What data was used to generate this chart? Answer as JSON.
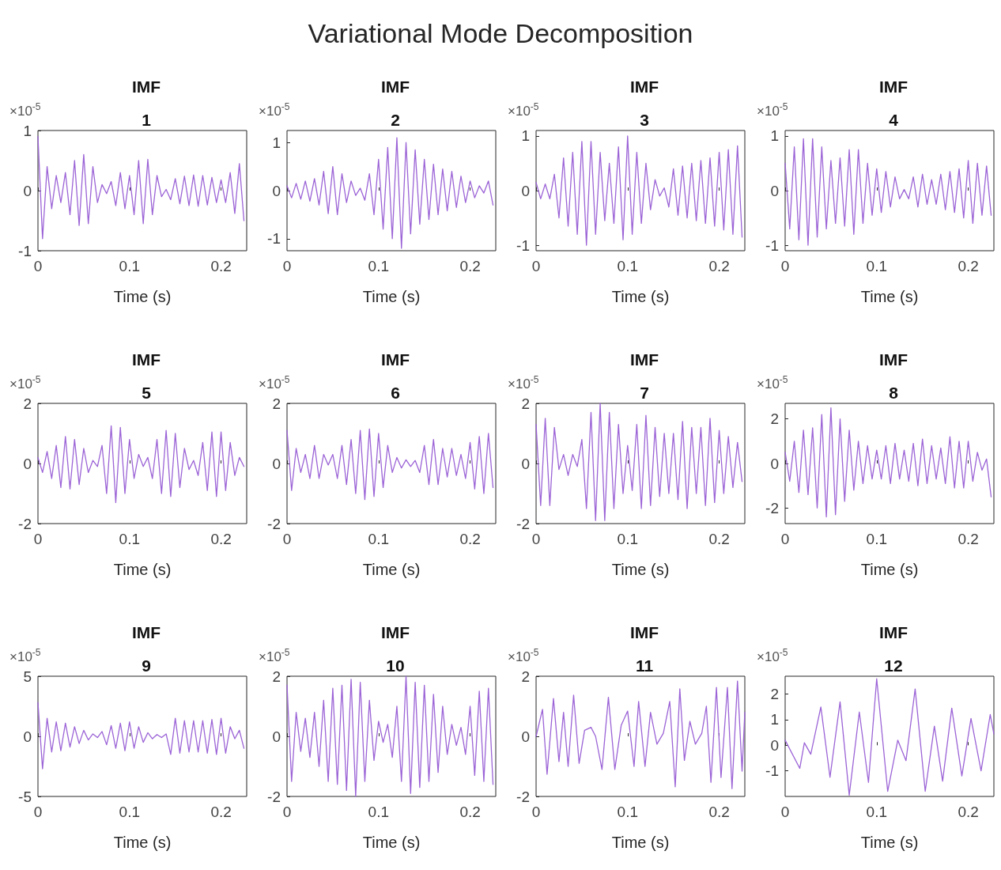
{
  "chart_data": [
    {
      "type": "other",
      "title": "Variational Mode Decomposition"
    },
    {
      "type": "line",
      "title": "IMF 1",
      "xlabel": "Time (s)",
      "annotations": [
        "×10$^{-5}$"
      ],
      "color": "#9b63d6",
      "xlim": [
        0,
        0.228
      ],
      "xticks": [
        0,
        0.1,
        0.2
      ],
      "ylim": [
        -1,
        1
      ],
      "yticks": [
        -1,
        0,
        1
      ],
      "x": [
        0,
        0.005,
        0.01,
        0.015,
        0.02,
        0.025,
        0.03,
        0.035,
        0.04,
        0.045,
        0.05,
        0.055,
        0.06,
        0.065,
        0.07,
        0.075,
        0.08,
        0.085,
        0.09,
        0.095,
        0.1,
        0.105,
        0.11,
        0.115,
        0.12,
        0.125,
        0.13,
        0.135,
        0.14,
        0.145,
        0.15,
        0.155,
        0.16,
        0.165,
        0.17,
        0.175,
        0.18,
        0.185,
        0.19,
        0.195,
        0.2,
        0.205,
        0.21,
        0.215,
        0.22,
        0.225
      ],
      "values": [
        0.9,
        -0.8,
        0.4,
        -0.3,
        0.25,
        -0.2,
        0.3,
        -0.4,
        0.5,
        -0.58,
        0.6,
        -0.55,
        0.4,
        -0.2,
        0.1,
        -0.05,
        0.15,
        -0.25,
        0.3,
        -0.3,
        0.25,
        -0.4,
        0.5,
        -0.55,
        0.52,
        -0.4,
        0.25,
        -0.1,
        0.02,
        -0.15,
        0.2,
        -0.22,
        0.24,
        -0.25,
        0.26,
        -0.26,
        0.25,
        -0.24,
        0.22,
        -0.2,
        0.18,
        -0.2,
        0.3,
        -0.38,
        0.45,
        -0.5
      ]
    },
    {
      "type": "line",
      "title": "IMF 2",
      "xlabel": "Time (s)",
      "annotations": [
        "×10$^{-5}$"
      ],
      "color": "#9b63d6",
      "xlim": [
        0,
        0.228
      ],
      "xticks": [
        0,
        0.1,
        0.2
      ],
      "ylim": [
        -1.25,
        1.25
      ],
      "yticks": [
        -1,
        0,
        1
      ],
      "x": [
        0,
        0.005,
        0.01,
        0.015,
        0.02,
        0.025,
        0.03,
        0.035,
        0.04,
        0.045,
        0.05,
        0.055,
        0.06,
        0.065,
        0.07,
        0.075,
        0.08,
        0.085,
        0.09,
        0.095,
        0.1,
        0.105,
        0.11,
        0.115,
        0.12,
        0.125,
        0.13,
        0.135,
        0.14,
        0.145,
        0.15,
        0.155,
        0.16,
        0.165,
        0.17,
        0.175,
        0.18,
        0.185,
        0.19,
        0.195,
        0.2,
        0.205,
        0.21,
        0.215,
        0.22,
        0.225
      ],
      "values": [
        0.1,
        -0.15,
        0.15,
        -0.18,
        0.2,
        -0.22,
        0.25,
        -0.3,
        0.4,
        -0.48,
        0.5,
        -0.5,
        0.35,
        -0.25,
        0.2,
        -0.1,
        0.05,
        -0.2,
        0.35,
        -0.5,
        0.65,
        -0.8,
        0.9,
        -1.0,
        1.1,
        -1.2,
        1.0,
        -0.9,
        0.85,
        -0.7,
        0.65,
        -0.6,
        0.55,
        -0.5,
        0.45,
        -0.42,
        0.4,
        -0.35,
        0.3,
        -0.25,
        0.2,
        -0.15,
        0.1,
        -0.05,
        0.2,
        -0.3
      ]
    },
    {
      "type": "line",
      "title": "IMF 3",
      "xlabel": "Time (s)",
      "annotations": [
        "×10$^{-5}$"
      ],
      "color": "#9b63d6",
      "xlim": [
        0,
        0.228
      ],
      "xticks": [
        0,
        0.1,
        0.2
      ],
      "ylim": [
        -1.1,
        1.1
      ],
      "yticks": [
        -1,
        0,
        1
      ],
      "x": [
        0,
        0.005,
        0.01,
        0.015,
        0.02,
        0.025,
        0.03,
        0.035,
        0.04,
        0.045,
        0.05,
        0.055,
        0.06,
        0.065,
        0.07,
        0.075,
        0.08,
        0.085,
        0.09,
        0.095,
        0.1,
        0.105,
        0.11,
        0.115,
        0.12,
        0.125,
        0.13,
        0.135,
        0.14,
        0.145,
        0.15,
        0.155,
        0.16,
        0.165,
        0.17,
        0.175,
        0.18,
        0.185,
        0.19,
        0.195,
        0.2,
        0.205,
        0.21,
        0.215,
        0.22,
        0.225
      ],
      "values": [
        0.15,
        -0.15,
        0.12,
        -0.15,
        0.3,
        -0.5,
        0.6,
        -0.65,
        0.7,
        -0.8,
        0.9,
        -1.0,
        0.9,
        -0.8,
        0.7,
        -0.55,
        0.5,
        -0.6,
        0.8,
        -0.9,
        1.0,
        -0.8,
        0.7,
        -0.6,
        0.5,
        -0.35,
        0.2,
        -0.1,
        0.05,
        -0.3,
        0.4,
        -0.45,
        0.45,
        -0.5,
        0.5,
        -0.55,
        0.55,
        -0.6,
        0.6,
        -0.65,
        0.7,
        -0.72,
        0.75,
        -0.8,
        0.82,
        -0.85
      ]
    },
    {
      "type": "line",
      "title": "IMF 4",
      "xlabel": "Time (s)",
      "annotations": [
        "×10$^{-5}$"
      ],
      "color": "#9b63d6",
      "xlim": [
        0,
        0.228
      ],
      "xticks": [
        0,
        0.1,
        0.2
      ],
      "ylim": [
        -1.1,
        1.1
      ],
      "yticks": [
        -1,
        0,
        1
      ],
      "x": [
        0,
        0.005,
        0.01,
        0.015,
        0.02,
        0.025,
        0.03,
        0.035,
        0.04,
        0.045,
        0.05,
        0.055,
        0.06,
        0.065,
        0.07,
        0.075,
        0.08,
        0.085,
        0.09,
        0.095,
        0.1,
        0.105,
        0.11,
        0.115,
        0.12,
        0.125,
        0.13,
        0.135,
        0.14,
        0.145,
        0.15,
        0.155,
        0.16,
        0.165,
        0.17,
        0.175,
        0.18,
        0.185,
        0.19,
        0.195,
        0.2,
        0.205,
        0.21,
        0.215,
        0.22,
        0.225
      ],
      "values": [
        0.5,
        -0.7,
        0.8,
        -0.9,
        0.95,
        -1.0,
        0.95,
        -0.85,
        0.8,
        -0.7,
        0.55,
        -0.6,
        0.6,
        -0.65,
        0.75,
        -0.8,
        0.75,
        -0.6,
        0.5,
        -0.45,
        0.4,
        -0.4,
        0.35,
        -0.3,
        0.25,
        -0.15,
        0.02,
        -0.15,
        0.25,
        -0.3,
        0.3,
        -0.25,
        0.2,
        -0.25,
        0.3,
        -0.35,
        0.35,
        -0.4,
        0.4,
        -0.5,
        0.55,
        -0.6,
        0.5,
        -0.45,
        0.45,
        -0.45
      ]
    },
    {
      "type": "line",
      "title": "IMF 5",
      "xlabel": "Time (s)",
      "annotations": [
        "×10$^{-5}$"
      ],
      "color": "#9b63d6",
      "xlim": [
        0,
        0.228
      ],
      "xticks": [
        0,
        0.1,
        0.2
      ],
      "ylim": [
        -2,
        2
      ],
      "yticks": [
        -2,
        0,
        2
      ],
      "x": [
        0,
        0.005,
        0.01,
        0.015,
        0.02,
        0.025,
        0.03,
        0.035,
        0.04,
        0.045,
        0.05,
        0.055,
        0.06,
        0.065,
        0.07,
        0.075,
        0.08,
        0.085,
        0.09,
        0.095,
        0.1,
        0.105,
        0.11,
        0.115,
        0.12,
        0.125,
        0.13,
        0.135,
        0.14,
        0.145,
        0.15,
        0.155,
        0.16,
        0.165,
        0.17,
        0.175,
        0.18,
        0.185,
        0.19,
        0.195,
        0.2,
        0.205,
        0.21,
        0.215,
        0.22,
        0.225
      ],
      "values": [
        0.2,
        -0.3,
        0.4,
        -0.5,
        0.6,
        -0.8,
        0.9,
        -0.85,
        0.8,
        -0.7,
        0.5,
        -0.3,
        0.1,
        -0.1,
        0.6,
        -1.0,
        1.25,
        -1.3,
        1.2,
        -1.0,
        0.8,
        -0.5,
        0.3,
        -0.1,
        0.2,
        -0.5,
        0.8,
        -1.0,
        1.1,
        -1.1,
        1.0,
        -0.8,
        0.5,
        -0.2,
        0.1,
        -0.4,
        0.7,
        -0.9,
        1.05,
        -1.1,
        1.05,
        -0.9,
        0.7,
        -0.4,
        0.2,
        -0.1
      ]
    },
    {
      "type": "line",
      "title": "IMF 6",
      "xlabel": "Time (s)",
      "annotations": [
        "×10$^{-5}$"
      ],
      "color": "#9b63d6",
      "xlim": [
        0,
        0.228
      ],
      "xticks": [
        0,
        0.1,
        0.2
      ],
      "ylim": [
        -2,
        2
      ],
      "yticks": [
        -2,
        0,
        2
      ],
      "x": [
        0,
        0.005,
        0.01,
        0.015,
        0.02,
        0.025,
        0.03,
        0.035,
        0.04,
        0.045,
        0.05,
        0.055,
        0.06,
        0.065,
        0.07,
        0.075,
        0.08,
        0.085,
        0.09,
        0.095,
        0.1,
        0.105,
        0.11,
        0.115,
        0.12,
        0.125,
        0.13,
        0.135,
        0.14,
        0.145,
        0.15,
        0.155,
        0.16,
        0.165,
        0.17,
        0.175,
        0.18,
        0.185,
        0.19,
        0.195,
        0.2,
        0.205,
        0.21,
        0.215,
        0.22,
        0.225
      ],
      "values": [
        1.1,
        -0.9,
        0.5,
        -0.3,
        0.3,
        -0.5,
        0.6,
        -0.5,
        0.3,
        -0.05,
        0.3,
        -0.5,
        0.6,
        -0.7,
        0.8,
        -1.0,
        1.1,
        -1.2,
        1.15,
        -1.1,
        1.0,
        -0.8,
        0.6,
        -0.3,
        0.2,
        -0.15,
        0.12,
        -0.1,
        0.1,
        -0.3,
        0.6,
        -0.7,
        0.8,
        -0.7,
        0.5,
        -0.45,
        0.5,
        -0.4,
        0.3,
        -0.5,
        0.7,
        -0.85,
        0.9,
        -1.0,
        1.0,
        -0.8
      ]
    },
    {
      "type": "line",
      "title": "IMF 7",
      "xlabel": "Time (s)",
      "annotations": [
        "×10$^{-5}$"
      ],
      "color": "#9b63d6",
      "xlim": [
        0,
        0.228
      ],
      "xticks": [
        0,
        0.1,
        0.2
      ],
      "ylim": [
        -2,
        2
      ],
      "yticks": [
        -2,
        0,
        2
      ],
      "x": [
        0,
        0.005,
        0.01,
        0.015,
        0.02,
        0.025,
        0.03,
        0.035,
        0.04,
        0.045,
        0.05,
        0.055,
        0.06,
        0.065,
        0.07,
        0.075,
        0.08,
        0.085,
        0.09,
        0.095,
        0.1,
        0.105,
        0.11,
        0.115,
        0.12,
        0.125,
        0.13,
        0.135,
        0.14,
        0.145,
        0.15,
        0.155,
        0.16,
        0.165,
        0.17,
        0.175,
        0.18,
        0.185,
        0.19,
        0.195,
        0.2,
        0.205,
        0.21,
        0.215,
        0.22,
        0.225
      ],
      "values": [
        1.3,
        -1.4,
        1.5,
        -1.4,
        1.2,
        -0.2,
        0.3,
        -0.4,
        0.3,
        -0.1,
        0.8,
        -1.5,
        1.7,
        -1.9,
        2.0,
        -1.9,
        1.7,
        -1.5,
        1.3,
        -1.0,
        0.6,
        -0.9,
        1.3,
        -1.5,
        1.6,
        -1.4,
        1.2,
        -1.1,
        1.0,
        -1.0,
        1.0,
        -1.2,
        1.4,
        -1.5,
        1.2,
        -1.0,
        1.2,
        -1.4,
        1.5,
        -1.3,
        1.1,
        -1.0,
        0.9,
        -0.8,
        0.7,
        -0.6
      ]
    },
    {
      "type": "line",
      "title": "IMF 8",
      "xlabel": "Time (s)",
      "annotations": [
        "×10$^{-5}$"
      ],
      "color": "#9b63d6",
      "xlim": [
        0,
        0.228
      ],
      "xticks": [
        0,
        0.1,
        0.2
      ],
      "ylim": [
        -2.7,
        2.7
      ],
      "yticks": [
        -2,
        0,
        2
      ],
      "x": [
        0,
        0.005,
        0.01,
        0.015,
        0.02,
        0.025,
        0.03,
        0.035,
        0.04,
        0.045,
        0.05,
        0.055,
        0.06,
        0.065,
        0.07,
        0.075,
        0.08,
        0.085,
        0.09,
        0.095,
        0.1,
        0.105,
        0.11,
        0.115,
        0.12,
        0.125,
        0.13,
        0.135,
        0.14,
        0.145,
        0.15,
        0.155,
        0.16,
        0.165,
        0.17,
        0.175,
        0.18,
        0.185,
        0.19,
        0.195,
        0.2,
        0.205,
        0.21,
        0.215,
        0.22,
        0.225
      ],
      "values": [
        0.5,
        -0.8,
        1.0,
        -1.3,
        1.5,
        -1.4,
        1.6,
        -2.0,
        2.2,
        -2.4,
        2.5,
        -2.3,
        2.0,
        -1.7,
        1.5,
        -1.2,
        1.0,
        -0.9,
        0.8,
        -0.7,
        0.6,
        -0.7,
        0.8,
        -0.9,
        0.9,
        -0.7,
        0.6,
        -0.8,
        0.9,
        -1.0,
        1.1,
        -0.9,
        0.8,
        -0.7,
        0.7,
        -0.9,
        1.2,
        -1.1,
        1.0,
        -1.1,
        1.0,
        -0.8,
        0.5,
        -0.3,
        0.2,
        -1.5
      ]
    },
    {
      "type": "line",
      "title": "IMF 9",
      "xlabel": "Time (s)",
      "annotations": [
        "×10$^{-5}$"
      ],
      "color": "#9b63d6",
      "xlim": [
        0,
        0.228
      ],
      "xticks": [
        0,
        0.1,
        0.2
      ],
      "ylim": [
        -5,
        5
      ],
      "yticks": [
        -5,
        0,
        5
      ],
      "x": [
        0,
        0.005,
        0.01,
        0.015,
        0.02,
        0.025,
        0.03,
        0.035,
        0.04,
        0.045,
        0.05,
        0.055,
        0.06,
        0.065,
        0.07,
        0.075,
        0.08,
        0.085,
        0.09,
        0.095,
        0.1,
        0.105,
        0.11,
        0.115,
        0.12,
        0.125,
        0.13,
        0.135,
        0.14,
        0.145,
        0.15,
        0.155,
        0.16,
        0.165,
        0.17,
        0.175,
        0.18,
        0.185,
        0.19,
        0.195,
        0.2,
        0.205,
        0.21,
        0.215,
        0.22,
        0.225
      ],
      "values": [
        2.8,
        -2.7,
        1.5,
        -1.3,
        1.2,
        -1.2,
        1.1,
        -0.9,
        0.8,
        -0.6,
        0.5,
        -0.3,
        0.2,
        -0.1,
        0.4,
        -0.7,
        0.9,
        -1.0,
        1.1,
        -1.2,
        1.2,
        -1.0,
        0.8,
        -0.5,
        0.3,
        -0.2,
        0.15,
        -0.1,
        0.2,
        -1.5,
        1.5,
        -1.4,
        1.3,
        -1.3,
        1.3,
        -1.3,
        1.3,
        -1.4,
        1.4,
        -1.5,
        1.5,
        -1.4,
        0.8,
        -0.2,
        0.5,
        -1.0
      ]
    },
    {
      "type": "line",
      "title": "IMF 10",
      "xlabel": "Time (s)",
      "annotations": [
        "×10$^{-5}$"
      ],
      "color": "#9b63d6",
      "xlim": [
        0,
        0.228
      ],
      "xticks": [
        0,
        0.1,
        0.2
      ],
      "ylim": [
        -2,
        2
      ],
      "yticks": [
        -2,
        0,
        2
      ],
      "x": [
        0,
        0.005,
        0.01,
        0.015,
        0.02,
        0.025,
        0.03,
        0.035,
        0.04,
        0.045,
        0.05,
        0.055,
        0.06,
        0.065,
        0.07,
        0.075,
        0.08,
        0.085,
        0.09,
        0.095,
        0.1,
        0.105,
        0.11,
        0.115,
        0.12,
        0.125,
        0.13,
        0.135,
        0.14,
        0.145,
        0.15,
        0.155,
        0.16,
        0.165,
        0.17,
        0.175,
        0.18,
        0.185,
        0.19,
        0.195,
        0.2,
        0.205,
        0.21,
        0.215,
        0.22,
        0.225
      ],
      "values": [
        1.7,
        -1.5,
        0.8,
        -0.5,
        0.6,
        -0.7,
        0.8,
        -1.0,
        1.2,
        -1.5,
        1.6,
        -1.6,
        1.7,
        -1.8,
        1.9,
        -2.0,
        1.8,
        -1.5,
        1.2,
        -0.8,
        0.5,
        -0.2,
        0.4,
        -0.7,
        1.0,
        -1.5,
        2.0,
        -1.9,
        1.8,
        -1.7,
        1.7,
        -1.5,
        1.4,
        -1.2,
        1.0,
        -0.6,
        0.4,
        -0.3,
        0.3,
        -0.6,
        1.0,
        -1.3,
        1.5,
        -1.5,
        1.6,
        -1.6
      ]
    },
    {
      "type": "line",
      "title": "IMF 11",
      "xlabel": "Time (s)",
      "annotations": [
        "×10$^{-5}$"
      ],
      "color": "#9b63d6",
      "xlim": [
        0,
        0.228
      ],
      "xticks": [
        0,
        0.1,
        0.2
      ],
      "ylim": [
        -2,
        2
      ],
      "yticks": [
        -2,
        0,
        2
      ],
      "x": [
        0,
        0.007,
        0.012,
        0.019,
        0.025,
        0.03,
        0.035,
        0.041,
        0.047,
        0.053,
        0.06,
        0.065,
        0.072,
        0.079,
        0.086,
        0.093,
        0.1,
        0.107,
        0.112,
        0.119,
        0.125,
        0.132,
        0.139,
        0.146,
        0.152,
        0.157,
        0.162,
        0.168,
        0.174,
        0.181,
        0.186,
        0.191,
        0.197,
        0.202,
        0.209,
        0.214,
        0.22,
        0.225,
        0.228
      ],
      "values": [
        0,
        0.9,
        -1.26,
        1.26,
        -0.84,
        0.8,
        -1.0,
        1.37,
        -0.9,
        0.2,
        0.3,
        0,
        -1.1,
        1.3,
        -1.1,
        0.37,
        0.84,
        -1.0,
        1.16,
        -1.0,
        0.8,
        -0.26,
        0.1,
        1.16,
        -1.68,
        1.58,
        -0.8,
        0.5,
        -0.26,
        0.1,
        1.0,
        -1.53,
        1.63,
        -1.37,
        1.63,
        -1.74,
        1.84,
        -1.16,
        0.8
      ]
    },
    {
      "type": "line",
      "title": "IMF 12",
      "xlabel": "Time (s)",
      "annotations": [
        "×10$^{-5}$"
      ],
      "color": "#9b63d6",
      "xlim": [
        0,
        0.228
      ],
      "xticks": [
        0,
        0.1,
        0.2
      ],
      "ylim": [
        -2,
        2.7
      ],
      "yticks": [
        -1,
        0,
        1,
        2
      ],
      "x": [
        0,
        0.016,
        0.021,
        0.028,
        0.039,
        0.049,
        0.06,
        0.07,
        0.081,
        0.091,
        0.1,
        0.112,
        0.123,
        0.132,
        0.142,
        0.153,
        0.163,
        0.172,
        0.182,
        0.193,
        0.203,
        0.214,
        0.224,
        0.228
      ],
      "values": [
        0.2,
        -0.9,
        0.1,
        -0.35,
        1.5,
        -1.25,
        1.7,
        -1.95,
        1.3,
        -1.45,
        2.6,
        -1.8,
        0.2,
        -0.6,
        2.2,
        -1.8,
        0.75,
        -1.4,
        1.45,
        -1.2,
        1.05,
        -1.0,
        1.2,
        0.45
      ]
    }
  ]
}
